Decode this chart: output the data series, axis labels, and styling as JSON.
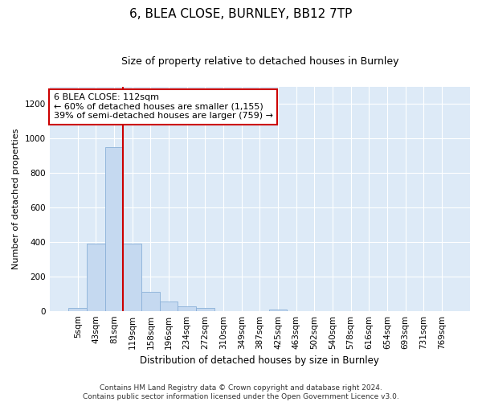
{
  "title1": "6, BLEA CLOSE, BURNLEY, BB12 7TP",
  "title2": "Size of property relative to detached houses in Burnley",
  "xlabel": "Distribution of detached houses by size in Burnley",
  "ylabel": "Number of detached properties",
  "categories": [
    "5sqm",
    "43sqm",
    "81sqm",
    "119sqm",
    "158sqm",
    "196sqm",
    "234sqm",
    "272sqm",
    "310sqm",
    "349sqm",
    "387sqm",
    "425sqm",
    "463sqm",
    "502sqm",
    "540sqm",
    "578sqm",
    "616sqm",
    "654sqm",
    "693sqm",
    "731sqm",
    "769sqm"
  ],
  "values": [
    15,
    390,
    950,
    390,
    110,
    55,
    25,
    15,
    0,
    0,
    0,
    10,
    0,
    0,
    0,
    0,
    0,
    0,
    0,
    0,
    0
  ],
  "bar_color": "#c5d9f0",
  "bar_edgecolor": "#8ab0d8",
  "vline_x": 2.5,
  "vline_color": "#cc0000",
  "annotation_text": "6 BLEA CLOSE: 112sqm\n← 60% of detached houses are smaller (1,155)\n39% of semi-detached houses are larger (759) →",
  "annotation_box_facecolor": "#ffffff",
  "annotation_box_edgecolor": "#cc0000",
  "ylim": [
    0,
    1300
  ],
  "yticks": [
    0,
    200,
    400,
    600,
    800,
    1000,
    1200
  ],
  "footer": "Contains HM Land Registry data © Crown copyright and database right 2024.\nContains public sector information licensed under the Open Government Licence v3.0.",
  "plot_bg_color": "#ddeaf7",
  "fig_bg_color": "#ffffff",
  "grid_color": "#ffffff",
  "title1_fontsize": 11,
  "title2_fontsize": 9,
  "xlabel_fontsize": 8.5,
  "ylabel_fontsize": 8,
  "tick_fontsize": 7.5,
  "annot_fontsize": 8,
  "footer_fontsize": 6.5
}
